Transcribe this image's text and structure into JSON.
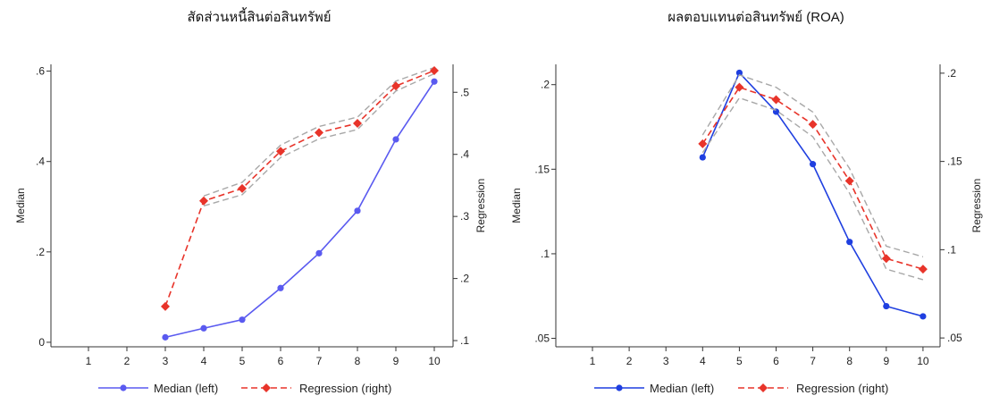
{
  "chart_data": [
    {
      "type": "line",
      "title": "สัดส่วนหนี้สินต่อสินทรัพย์",
      "ylabel_left": "Median",
      "ylabel_right": "Regression",
      "x": [
        1,
        2,
        3,
        4,
        5,
        6,
        7,
        8,
        9,
        10
      ],
      "ylim_left": [
        -0.01,
        0.615
      ],
      "ylim_right": [
        0.09,
        0.545
      ],
      "left_ticks": [
        {
          "v": 0,
          "label": "0"
        },
        {
          "v": 0.2,
          "label": ".2"
        },
        {
          "v": 0.4,
          "label": ".4"
        },
        {
          "v": 0.6,
          "label": ".6"
        }
      ],
      "right_ticks": [
        {
          "v": 0.1,
          "label": ".1"
        },
        {
          "v": 0.2,
          "label": ".2"
        },
        {
          "v": 0.3,
          "label": ".3"
        },
        {
          "v": 0.4,
          "label": ".4"
        },
        {
          "v": 0.5,
          "label": ".5"
        }
      ],
      "series": [
        {
          "name": "Median (left)",
          "axis": "left",
          "style": "solid-circle",
          "color": "#5A5AF0",
          "points": [
            [
              3,
              0.011
            ],
            [
              4,
              0.031
            ],
            [
              5,
              0.05
            ],
            [
              6,
              0.12
            ],
            [
              7,
              0.197
            ],
            [
              8,
              0.291
            ],
            [
              9,
              0.449
            ],
            [
              10,
              0.577
            ]
          ]
        },
        {
          "name": "Regression (right)",
          "axis": "right",
          "style": "dashed-diamond",
          "color": "#E8342A",
          "points": [
            [
              3,
              0.155
            ],
            [
              4,
              0.325
            ],
            [
              5,
              0.345
            ],
            [
              6,
              0.405
            ],
            [
              7,
              0.435
            ],
            [
              8,
              0.45
            ],
            [
              9,
              0.51
            ],
            [
              10,
              0.535
            ]
          ],
          "ci_upper": [
            [
              4,
              0.333
            ],
            [
              5,
              0.355
            ],
            [
              6,
              0.415
            ],
            [
              7,
              0.445
            ],
            [
              8,
              0.46
            ],
            [
              9,
              0.518
            ],
            [
              10,
              0.54
            ]
          ],
          "ci_lower": [
            [
              4,
              0.317
            ],
            [
              5,
              0.335
            ],
            [
              6,
              0.395
            ],
            [
              7,
              0.425
            ],
            [
              8,
              0.44
            ],
            [
              9,
              0.502
            ],
            [
              10,
              0.53
            ]
          ]
        }
      ],
      "legend_position": "bottom"
    },
    {
      "type": "line",
      "title": "ผลตอบแทนต่อสินทรัพย์ (ROA)",
      "ylabel_left": "Median",
      "ylabel_right": "Regression",
      "x": [
        1,
        2,
        3,
        4,
        5,
        6,
        7,
        8,
        9,
        10
      ],
      "ylim_left": [
        0.045,
        0.212
      ],
      "ylim_right": [
        0.045,
        0.205
      ],
      "left_ticks": [
        {
          "v": 0.05,
          "label": ".05"
        },
        {
          "v": 0.1,
          "label": ".1"
        },
        {
          "v": 0.15,
          "label": ".15"
        },
        {
          "v": 0.2,
          "label": ".2"
        }
      ],
      "right_ticks": [
        {
          "v": 0.05,
          "label": ".05"
        },
        {
          "v": 0.1,
          "label": ".1"
        },
        {
          "v": 0.15,
          "label": ".15"
        },
        {
          "v": 0.2,
          "label": ".2"
        }
      ],
      "series": [
        {
          "name": "Median (left)",
          "axis": "left",
          "style": "solid-circle",
          "color": "#1F3FE0",
          "points": [
            [
              4,
              0.157
            ],
            [
              5,
              0.207
            ],
            [
              6,
              0.184
            ],
            [
              7,
              0.153
            ],
            [
              8,
              0.107
            ],
            [
              9,
              0.069
            ],
            [
              10,
              0.063
            ]
          ]
        },
        {
          "name": "Regression (right)",
          "axis": "right",
          "style": "dashed-diamond",
          "color": "#E8342A",
          "points": [
            [
              4,
              0.16
            ],
            [
              5,
              0.192
            ],
            [
              6,
              0.185
            ],
            [
              7,
              0.171
            ],
            [
              8,
              0.139
            ],
            [
              9,
              0.095
            ],
            [
              10,
              0.089
            ]
          ],
          "ci_upper": [
            [
              4,
              0.165
            ],
            [
              5,
              0.199
            ],
            [
              6,
              0.192
            ],
            [
              7,
              0.178
            ],
            [
              8,
              0.146
            ],
            [
              9,
              0.102
            ],
            [
              10,
              0.096
            ]
          ],
          "ci_lower": [
            [
              4,
              0.155
            ],
            [
              5,
              0.186
            ],
            [
              6,
              0.179
            ],
            [
              7,
              0.164
            ],
            [
              8,
              0.132
            ],
            [
              9,
              0.089
            ],
            [
              10,
              0.083
            ]
          ]
        }
      ],
      "legend_position": "bottom"
    }
  ]
}
